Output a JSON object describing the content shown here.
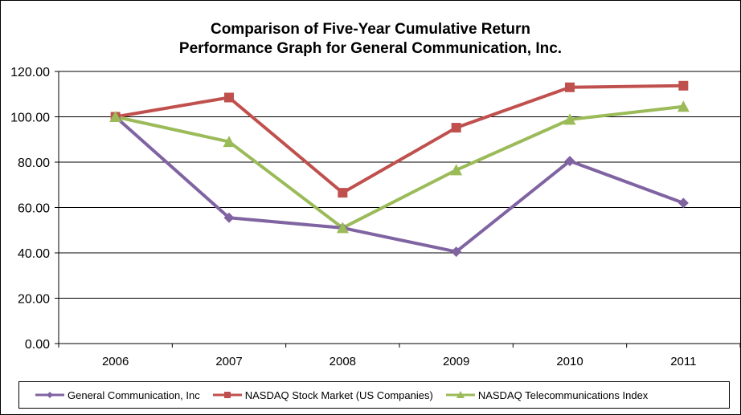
{
  "chart_data": {
    "type": "line",
    "title_line1": "Comparison of Five-Year Cumulative Return",
    "title_line2": "Performance Graph for General Communication, Inc.",
    "xlabel": "",
    "ylabel": "",
    "categories": [
      "2006",
      "2007",
      "2008",
      "2009",
      "2010",
      "2011"
    ],
    "ylim": [
      0,
      120
    ],
    "yticks": [
      "0.00",
      "20.00",
      "40.00",
      "60.00",
      "80.00",
      "100.00",
      "120.00"
    ],
    "grid": true,
    "legend_position": "bottom",
    "series": [
      {
        "name": "General Communication, Inc",
        "values": [
          100,
          55.5,
          51,
          40.5,
          80.5,
          62
        ],
        "color": "#8064a2",
        "marker": "diamond"
      },
      {
        "name": "NASDAQ Stock Market (US Companies)",
        "values": [
          100,
          108.5,
          66.5,
          95.2,
          113,
          113.7
        ],
        "color": "#c0504d",
        "marker": "square"
      },
      {
        "name": "NASDAQ Telecommunications Index",
        "values": [
          100,
          89,
          51,
          76.5,
          98.8,
          104.5
        ],
        "color": "#9bbb59",
        "marker": "triangle"
      }
    ]
  }
}
